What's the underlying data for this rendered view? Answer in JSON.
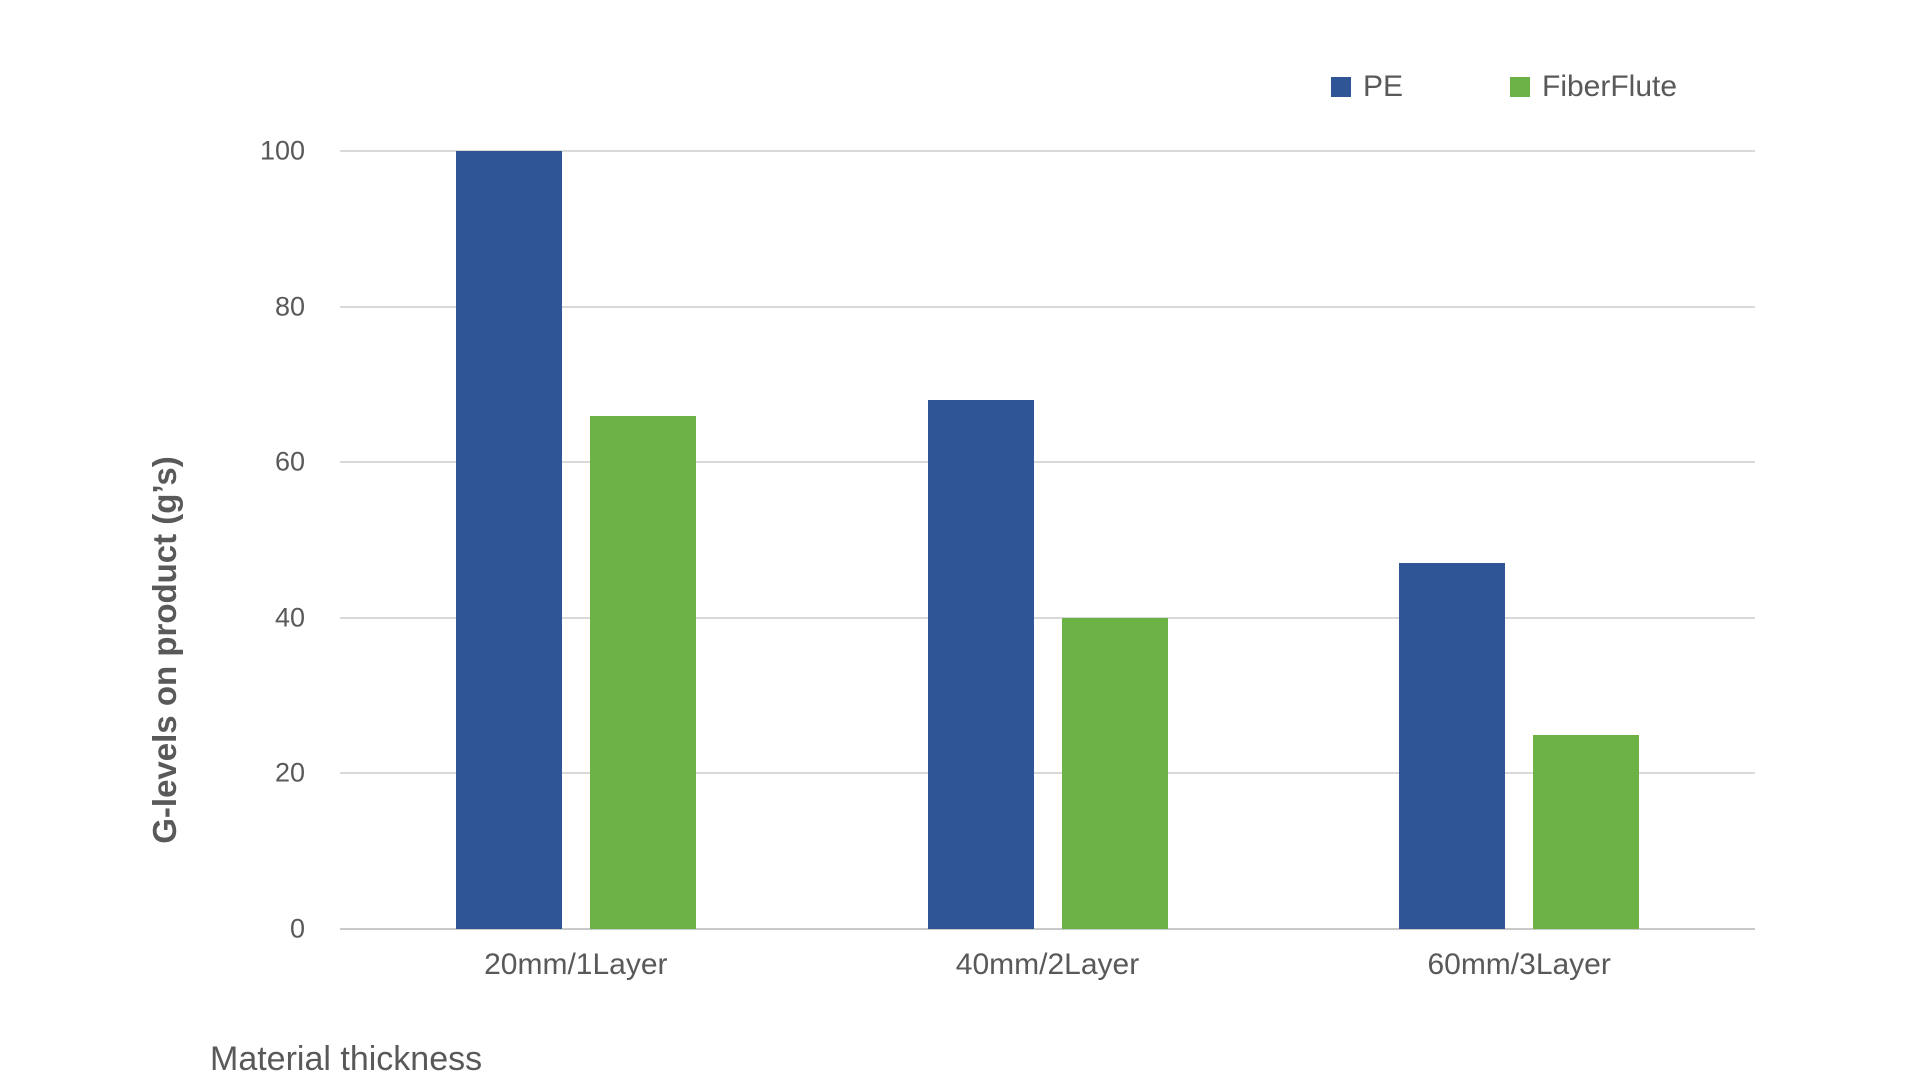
{
  "chart_data": {
    "type": "bar",
    "categories": [
      "20mm/1Layer",
      "40mm/2Layer",
      "60mm/3Layer"
    ],
    "series": [
      {
        "name": "PE",
        "color": "#2F5596",
        "values": [
          100,
          68,
          47
        ]
      },
      {
        "name": "FiberFlute",
        "color": "#6CB244",
        "values": [
          66,
          40,
          25
        ]
      }
    ],
    "title": "",
    "xlabel": "Material thickness",
    "ylabel": "G-levels on product (g’s)",
    "ylim": [
      0,
      100
    ],
    "yticks": [
      0,
      20,
      40,
      60,
      80,
      100
    ],
    "grid": true,
    "legend_position": "top-right",
    "gridline_color": "#D9D9D9",
    "baseline_color": "#C9C9C9",
    "axis_text_color": "#595959",
    "background_color": "#FFFFFF"
  }
}
